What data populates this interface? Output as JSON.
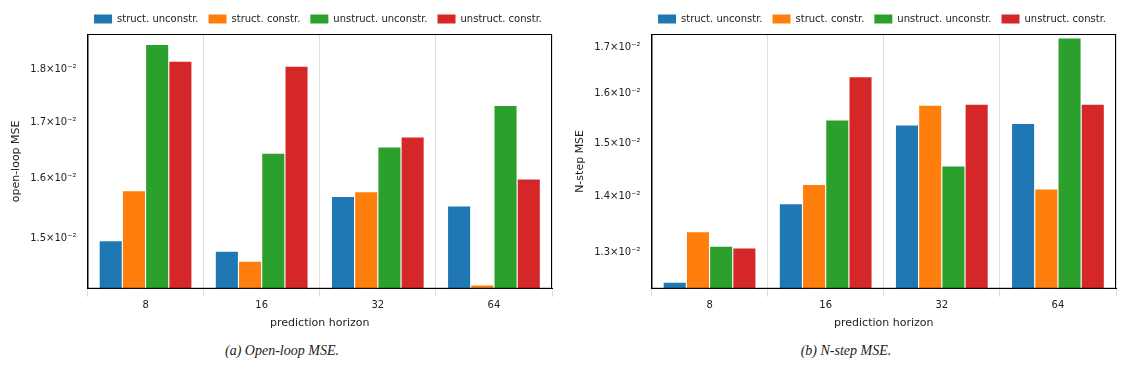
{
  "chart_data": [
    {
      "type": "bar",
      "caption": "(a) Open-loop MSE.",
      "x_label": "prediction horizon",
      "y_label": "open-loop MSE",
      "categories": [
        "8",
        "16",
        "32",
        "64"
      ],
      "series": [
        {
          "name": "struct. unconstr.",
          "color": "#1f77b4",
          "values": [
            0.01495,
            0.01478,
            0.01568,
            0.01552
          ]
        },
        {
          "name": "struct. constr.",
          "color": "#ff7f0e",
          "values": [
            0.01578,
            0.01462,
            0.01576,
            0.01425
          ]
        },
        {
          "name": "unstruct. unconstr.",
          "color": "#2ca02c",
          "values": [
            0.01848,
            0.01643,
            0.01654,
            0.0173
          ]
        },
        {
          "name": "unstruct. constr.",
          "color": "#d62728",
          "values": [
            0.01815,
            0.01805,
            0.01672,
            0.01598
          ]
        }
      ],
      "log": "y",
      "ylim": [
        0.0142,
        0.0187
      ],
      "yticks": [
        {
          "value": 0.015,
          "label": "1.5×10⁻²"
        },
        {
          "value": 0.016,
          "label": "1.6×10⁻²"
        },
        {
          "value": 0.017,
          "label": "1.7×10⁻²"
        },
        {
          "value": 0.018,
          "label": "1.8×10⁻²"
        }
      ],
      "grid": true,
      "legend": "upper right"
    },
    {
      "type": "bar",
      "caption": "(b) N-step MSE.",
      "x_label": "prediction horizon",
      "y_label": "N-step MSE",
      "categories": [
        "8",
        "16",
        "32",
        "64"
      ],
      "series": [
        {
          "name": "struct. unconstr.",
          "color": "#1f77b4",
          "values": [
            0.0125,
            0.01385,
            0.01535,
            0.01538
          ]
        },
        {
          "name": "struct. constr.",
          "color": "#ff7f0e",
          "values": [
            0.01335,
            0.0142,
            0.01575,
            0.01412
          ]
        },
        {
          "name": "unstruct. unconstr.",
          "color": "#2ca02c",
          "values": [
            0.0131,
            0.01545,
            0.01455,
            0.0172
          ]
        },
        {
          "name": "unstruct. constr.",
          "color": "#d62728",
          "values": [
            0.01307,
            0.01635,
            0.01577,
            0.01577
          ]
        }
      ],
      "log": "y",
      "ylim": [
        0.0124,
        0.0173
      ],
      "yticks": [
        {
          "value": 0.013,
          "label": "1.3×10⁻²"
        },
        {
          "value": 0.014,
          "label": "1.4×10⁻²"
        },
        {
          "value": 0.015,
          "label": "1.5×10⁻²"
        },
        {
          "value": 0.016,
          "label": "1.6×10⁻²"
        },
        {
          "value": 0.017,
          "label": "1.7×10⁻²"
        }
      ],
      "grid": true,
      "legend": "upper right"
    }
  ]
}
